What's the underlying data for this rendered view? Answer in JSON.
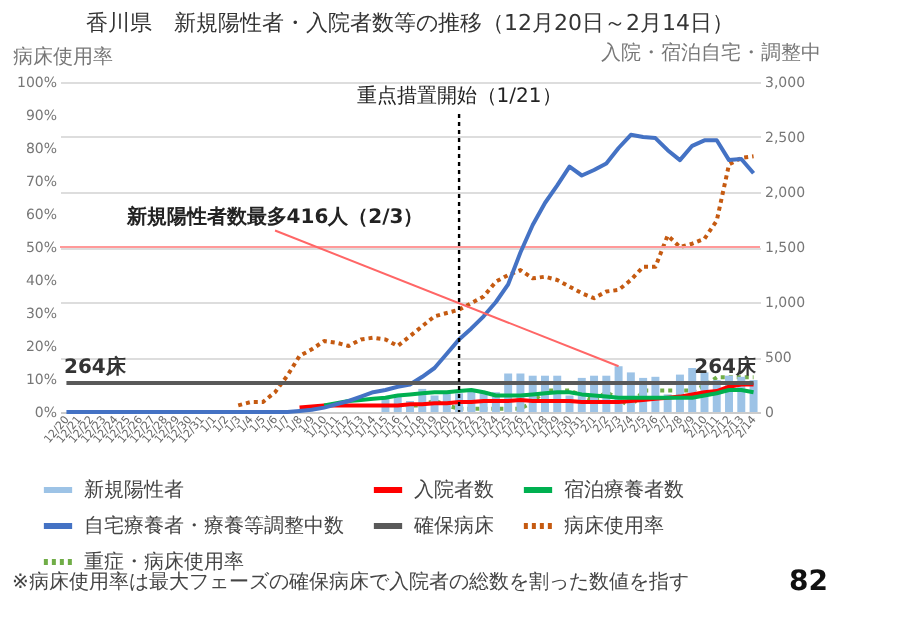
{
  "chart_data": {
    "type": "line",
    "title": "香川県　新規陽性者・入院者数等の推移（12月20日～2月14日）",
    "ylabel": "病床使用率",
    "y2label": "入院・宿泊自宅・調整中",
    "categories": [
      "12/20",
      "12/21",
      "12/22",
      "12/23",
      "12/24",
      "12/25",
      "12/26",
      "12/27",
      "12/28",
      "12/29",
      "12/30",
      "12/31",
      "1/1",
      "1/2",
      "1/3",
      "1/4",
      "1/5",
      "1/6",
      "1/7",
      "1/8",
      "1/9",
      "1/10",
      "1/11",
      "1/12",
      "1/13",
      "1/14",
      "1/15",
      "1/16",
      "1/17",
      "1/18",
      "1/19",
      "1/20",
      "1/21",
      "1/22",
      "1/23",
      "1/24",
      "1/25",
      "1/26",
      "1/27",
      "1/28",
      "1/29",
      "1/30",
      "1/31",
      "2/1",
      "2/2",
      "2/3",
      "2/4",
      "2/5",
      "2/6",
      "2/7",
      "2/8",
      "2/9",
      "2/10",
      "2/11",
      "2/12",
      "2/13",
      "2/14"
    ],
    "series": [
      {
        "name": "新規陽性者",
        "type": "bar",
        "axis": "y2",
        "color": "#9dc3e6",
        "values": [
          null,
          null,
          null,
          null,
          null,
          null,
          null,
          null,
          null,
          null,
          null,
          null,
          null,
          null,
          null,
          null,
          null,
          null,
          null,
          null,
          null,
          null,
          null,
          null,
          null,
          null,
          140,
          150,
          100,
          210,
          150,
          190,
          170,
          190,
          190,
          180,
          350,
          350,
          330,
          330,
          330,
          150,
          310,
          330,
          330,
          416,
          360,
          310,
          320,
          160,
          340,
          400,
          360,
          290,
          330,
          320,
          290
        ]
      },
      {
        "name": "入院者数",
        "type": "line",
        "axis": "y2",
        "color": "#ff0000",
        "values": [
          null,
          null,
          null,
          null,
          null,
          null,
          null,
          null,
          null,
          null,
          null,
          null,
          null,
          null,
          null,
          null,
          null,
          null,
          null,
          40,
          50,
          60,
          60,
          60,
          60,
          60,
          60,
          60,
          70,
          70,
          80,
          80,
          90,
          90,
          100,
          100,
          100,
          110,
          100,
          100,
          100,
          100,
          90,
          90,
          90,
          90,
          100,
          110,
          120,
          130,
          140,
          160,
          180,
          190,
          230,
          250,
          250
        ]
      },
      {
        "name": "宿泊療養者数",
        "type": "line",
        "axis": "y2",
        "color": "#00b050",
        "values": [
          null,
          null,
          null,
          null,
          null,
          null,
          null,
          null,
          null,
          null,
          null,
          null,
          null,
          null,
          null,
          null,
          null,
          null,
          null,
          null,
          null,
          60,
          80,
          100,
          110,
          120,
          130,
          150,
          160,
          170,
          180,
          180,
          190,
          200,
          180,
          150,
          150,
          150,
          160,
          170,
          180,
          180,
          160,
          150,
          140,
          130,
          130,
          130,
          130,
          130,
          130,
          130,
          150,
          170,
          200,
          200,
          180
        ]
      },
      {
        "name": "自宅療養者・療養等調整中数",
        "type": "line",
        "axis": "y2",
        "color": "#4472c4",
        "values": [
          0,
          0,
          0,
          0,
          0,
          0,
          0,
          0,
          0,
          0,
          0,
          0,
          0,
          0,
          0,
          0,
          0,
          0,
          0,
          10,
          20,
          40,
          70,
          100,
          140,
          180,
          200,
          230,
          250,
          320,
          400,
          530,
          660,
          760,
          870,
          1000,
          1160,
          1450,
          1700,
          1900,
          2060,
          2230,
          2150,
          2200,
          2260,
          2400,
          2520,
          2500,
          2490,
          2380,
          2290,
          2420,
          2470,
          2470,
          2290,
          2300,
          2170
        ]
      },
      {
        "name": "確保病床",
        "type": "line",
        "axis": "y2",
        "color": "#595959",
        "values": [
          264,
          264,
          264,
          264,
          264,
          264,
          264,
          264,
          264,
          264,
          264,
          264,
          264,
          264,
          264,
          264,
          264,
          264,
          264,
          264,
          264,
          264,
          264,
          264,
          264,
          264,
          264,
          264,
          264,
          264,
          264,
          264,
          264,
          264,
          264,
          264,
          264,
          264,
          264,
          264,
          264,
          264,
          264,
          264,
          264,
          264,
          264,
          264,
          264,
          264,
          264,
          264,
          264,
          264,
          264,
          264,
          264
        ]
      },
      {
        "name": "病床使用率",
        "type": "line",
        "line_style": "dotted",
        "color": "#c55a11",
        "values": [
          null,
          null,
          null,
          null,
          null,
          null,
          null,
          null,
          null,
          null,
          null,
          null,
          null,
          null,
          2,
          3,
          3,
          6,
          11,
          17,
          19,
          21.5,
          21,
          20,
          22,
          22.5,
          22,
          20,
          23,
          26,
          29,
          30,
          31,
          33,
          35,
          39.5,
          41.5,
          43,
          40.5,
          41,
          40,
          38,
          36,
          34.5,
          36.5,
          37,
          40,
          44,
          44,
          53.5,
          50,
          51,
          52.5,
          58,
          75,
          77,
          77.5
        ]
      },
      {
        "name": "重症・病床使用率",
        "type": "line",
        "line_style": "dotted",
        "color": "#70ad47",
        "values": [
          null,
          null,
          null,
          null,
          null,
          null,
          null,
          null,
          null,
          null,
          null,
          null,
          null,
          null,
          null,
          null,
          null,
          null,
          null,
          null,
          null,
          null,
          null,
          null,
          null,
          null,
          null,
          2,
          2,
          2,
          3.5,
          2,
          1,
          1,
          1,
          1,
          1,
          1,
          3,
          6.5,
          6.5,
          6.5,
          5,
          3.5,
          6,
          4,
          1.5,
          6.5,
          6.5,
          6.5,
          6.5,
          6.5,
          8,
          10.5,
          10.5,
          10.5,
          10.5
        ]
      }
    ],
    "ylim": [
      0,
      100
    ],
    "yticks": [
      {
        "value": 0,
        "label": "0%"
      },
      {
        "value": 10,
        "label": "10%"
      },
      {
        "value": 20,
        "label": "20%"
      },
      {
        "value": 30,
        "label": "30%"
      },
      {
        "value": 40,
        "label": "40%"
      },
      {
        "value": 50,
        "label": "50%"
      },
      {
        "value": 60,
        "label": "60%"
      },
      {
        "value": 70,
        "label": "70%"
      },
      {
        "value": 80,
        "label": "80%"
      },
      {
        "value": 90,
        "label": "90%"
      },
      {
        "value": 100,
        "label": "100%"
      }
    ],
    "y2lim": [
      0,
      3000
    ],
    "y2ticks": [
      0,
      500,
      {
        "value": 1000,
        "label": "1,000"
      },
      {
        "value": 1500,
        "label": "1,500"
      },
      {
        "value": 2000,
        "label": "2,000"
      },
      {
        "value": 2500,
        "label": "2,500"
      },
      {
        "value": 3000,
        "label": "3,000"
      }
    ],
    "grid": "y2",
    "legend": "bottom",
    "ref_lines": [
      {
        "axis": "x",
        "value": "1/21",
        "label": "重点措置開始（1/21）",
        "color": "#000000",
        "line_style": "dotted"
      },
      {
        "axis": "y",
        "value": 50,
        "color": "#ff9999"
      }
    ],
    "annotations": [
      "新規陽性者数最多416人（2/3）",
      "264床",
      "264床",
      "※病床使用率は最大フェーズの確保病床で入院者の総数を割った数値を指す",
      "82"
    ]
  }
}
